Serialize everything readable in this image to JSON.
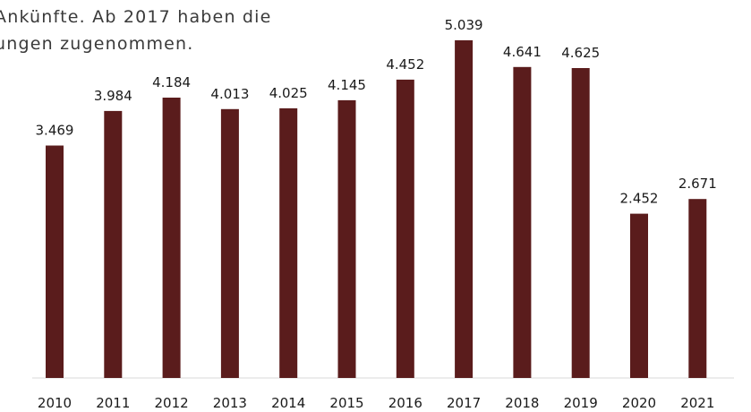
{
  "intro_text": {
    "line1": "Ankünfte. Ab 2017 haben die",
    "line2": "ungen zugenommen."
  },
  "colors": {
    "bar": "#5a1c1c"
  },
  "chart_data": {
    "type": "bar",
    "categories": [
      "2010",
      "2011",
      "2012",
      "2013",
      "2014",
      "2015",
      "2016",
      "2017",
      "2018",
      "2019",
      "2020",
      "2021"
    ],
    "values": [
      3469,
      3984,
      4184,
      4013,
      4025,
      4145,
      4452,
      5039,
      4641,
      4625,
      2452,
      2671
    ],
    "value_labels": [
      "3.469",
      "3.984",
      "4.184",
      "4.013",
      "4.025",
      "4.145",
      "4.452",
      "5.039",
      "4.641",
      "4.625",
      "2.452",
      "2.671"
    ],
    "title": "",
    "xlabel": "",
    "ylabel": "",
    "ylim": [
      0,
      5039
    ],
    "grid": false,
    "legend": "none"
  }
}
